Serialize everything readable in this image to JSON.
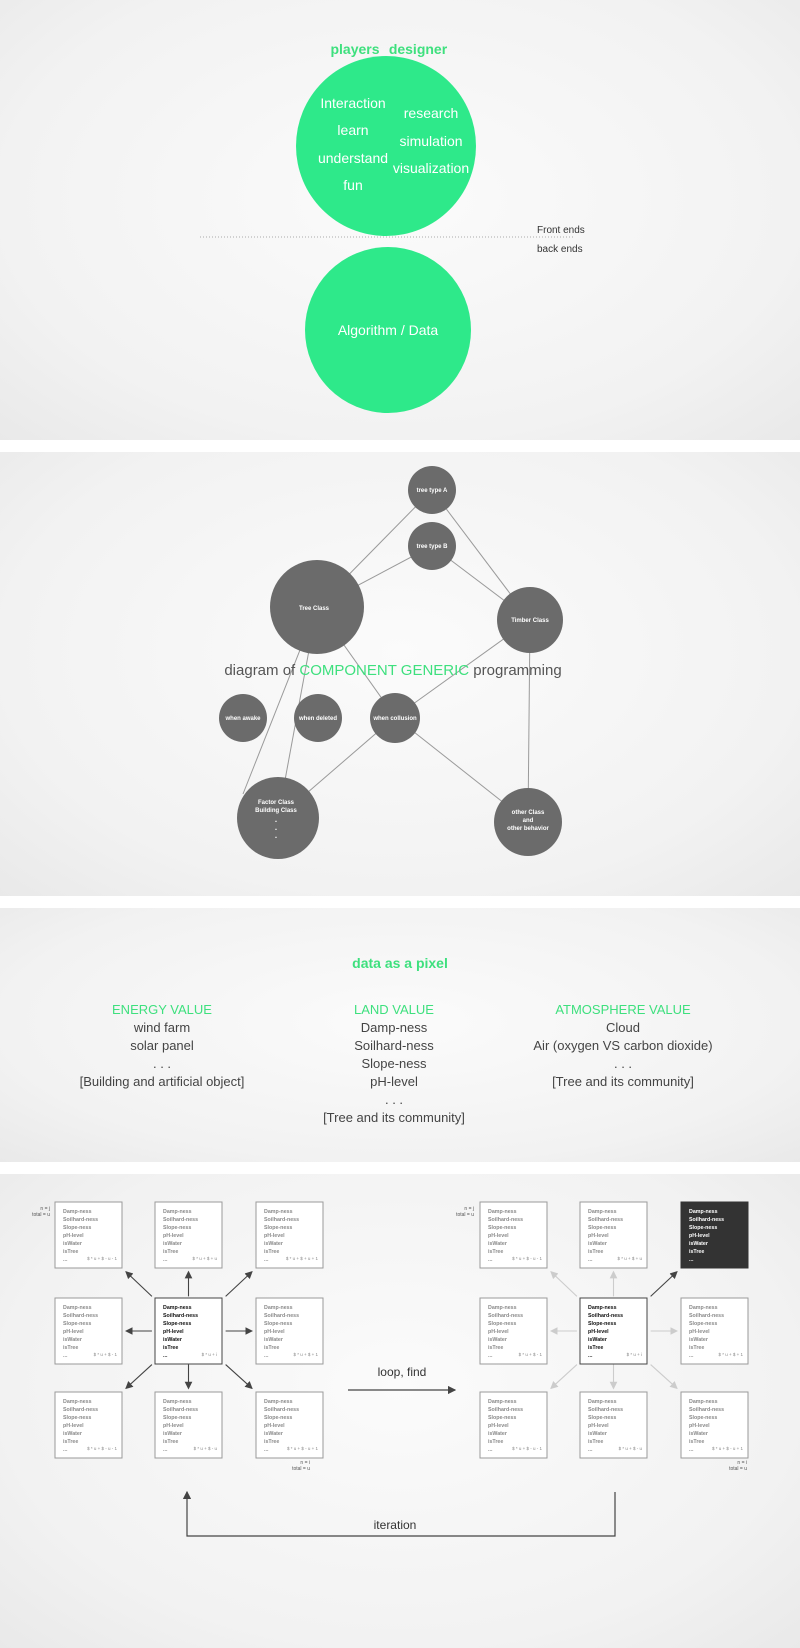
{
  "colors": {
    "accent": "#3ee07e",
    "node": "#6b6b6b",
    "dark_cell": "#333333"
  },
  "panel1": {
    "roles": [
      "players",
      "designer"
    ],
    "front_words_left": [
      "Interaction",
      "learn",
      "understand",
      "fun"
    ],
    "front_words_right": [
      "research",
      "simulation",
      "visualization"
    ],
    "front_label": "Front ends",
    "back_label": "back ends",
    "back_circle_label": "Algorithm / Data"
  },
  "panel2": {
    "title_pre": "diagram of",
    "title_highlight": "COMPONENT GENERIC",
    "title_post": "programming",
    "nodes": {
      "tree_a": "tree type A",
      "tree_b": "tree type B",
      "tree_class": "Tree Class",
      "timber_class": "Timber Class",
      "when_awake": "when awake",
      "when_deleted": "when deleted",
      "when_collusion": "when collusion",
      "factor_class": "Factor Class",
      "building_class": "Building Class",
      "other_class": "other Class",
      "and": "and",
      "other_behavior": "other behavior"
    }
  },
  "panel3": {
    "title": "data as a pixel",
    "energy": {
      "heading": "ENERGY VALUE",
      "lines": [
        "wind farm",
        "solar panel",
        ". . .",
        "[Building and artificial object]"
      ]
    },
    "land": {
      "heading": "LAND VALUE",
      "lines": [
        "Damp-ness",
        "Soilhard-ness",
        "Slope-ness",
        "pH-level",
        ". . .",
        "[Tree and its community]"
      ]
    },
    "atmosphere": {
      "heading": "ATMOSPHERE VALUE",
      "lines": [
        "Cloud",
        "Air (oxygen VS carbon dioxide)",
        ". . .",
        "[Tree and its community]"
      ]
    }
  },
  "panel4": {
    "cell_lines": [
      "Damp-ness",
      "Soilhard-ness",
      "Slope-ness",
      "pH-level",
      "isWater",
      "isTree",
      "..."
    ],
    "formulas": [
      "$ * u + $ - u - 1",
      "$ * u + $ + u",
      "$ * u + $ + u + 1",
      "$ * u + $ - 1",
      "$ * u + i",
      "$ * u + $ + 1",
      "$ * u + $ - u - 1",
      "$ * u + $ - u",
      "$ * u + $ - u + 1"
    ],
    "corner_top": [
      "n = j",
      "total = u"
    ],
    "corner_bottom": [
      "n = i",
      "total = u"
    ],
    "loop_label": "loop, find",
    "iteration_label": "iteration"
  }
}
